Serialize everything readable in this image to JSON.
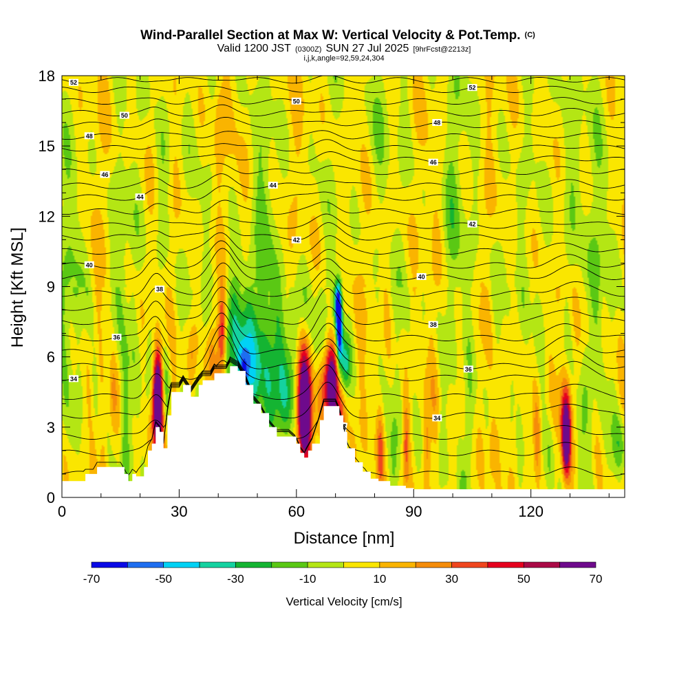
{
  "header": {
    "title_main": "Wind-Parallel Section at Max W: Vertical Velocity & Pot.Temp.",
    "title_mark": "(C)",
    "valid_prefix": "Valid 1200 JST",
    "valid_z": "(0300Z)",
    "valid_date": "SUN 27 Jul 2025",
    "valid_fcst": "[9hrFcst@2213z]",
    "indices": "i,j,k,angle=92,59,24,304"
  },
  "chart_data": {
    "type": "heatmap",
    "xlabel": "Distance [nm]",
    "ylabel": "Height [Kft MSL]",
    "xlim": [
      0,
      144
    ],
    "ylim": [
      0,
      18
    ],
    "xticks": [
      0,
      30,
      60,
      90,
      120
    ],
    "xtick_labels": [
      "0",
      "30",
      "60",
      "90",
      "120"
    ],
    "yticks": [
      0,
      3,
      6,
      9,
      12,
      15,
      18
    ],
    "ytick_labels": [
      "0",
      "3",
      "6",
      "9",
      "12",
      "15",
      "18"
    ],
    "colorbar": {
      "label": "Vertical Velocity [cm/s]",
      "levels": [
        -70,
        -60,
        -50,
        -40,
        -30,
        -20,
        -10,
        0,
        10,
        20,
        30,
        40,
        50,
        60,
        70
      ],
      "tick_values": [
        -70,
        -50,
        -30,
        -10,
        10,
        30,
        50,
        70
      ],
      "tick_labels": [
        "-70",
        "-50",
        "-30",
        "-10",
        "10",
        "30",
        "50",
        "70"
      ],
      "colors": [
        "#0a0ae6",
        "#1e6ef0",
        "#00d2f5",
        "#14d2a0",
        "#14b432",
        "#5ac814",
        "#b4e614",
        "#fae600",
        "#fab400",
        "#f58c0a",
        "#f0461e",
        "#e6001e",
        "#aa0a46",
        "#6e0a8c"
      ]
    },
    "terrain_kft": [
      [
        0,
        0.7
      ],
      [
        5,
        0.7
      ],
      [
        6,
        1.0
      ],
      [
        8,
        1.0
      ],
      [
        9,
        1.3
      ],
      [
        15,
        1.3
      ],
      [
        16,
        1.0
      ],
      [
        17,
        0.7
      ],
      [
        18,
        1.0
      ],
      [
        19,
        0.9
      ],
      [
        21,
        1.3
      ],
      [
        22,
        2.0
      ],
      [
        23,
        2.3
      ],
      [
        24,
        3.0
      ],
      [
        25,
        2.8
      ],
      [
        26,
        2.1
      ],
      [
        27,
        3.5
      ],
      [
        28,
        4.5
      ],
      [
        30,
        4.5
      ],
      [
        31,
        4.8
      ],
      [
        33,
        4.3
      ],
      [
        35,
        4.8
      ],
      [
        36,
        5.0
      ],
      [
        38,
        5.0
      ],
      [
        39,
        5.3
      ],
      [
        42,
        5.3
      ],
      [
        43,
        5.6
      ],
      [
        45,
        5.4
      ],
      [
        47,
        4.8
      ],
      [
        49,
        4.0
      ],
      [
        51,
        3.6
      ],
      [
        53,
        3.0
      ],
      [
        55,
        2.6
      ],
      [
        58,
        2.6
      ],
      [
        60,
        2.3
      ],
      [
        61,
        1.9
      ],
      [
        62,
        1.7
      ],
      [
        63,
        2.0
      ],
      [
        64,
        2.3
      ],
      [
        66,
        3.3
      ],
      [
        67,
        3.9
      ],
      [
        70,
        3.9
      ],
      [
        71,
        3.5
      ],
      [
        72,
        2.8
      ],
      [
        73,
        2.1
      ],
      [
        75,
        1.5
      ],
      [
        77,
        1.1
      ],
      [
        79,
        0.8
      ],
      [
        81,
        0.7
      ],
      [
        84,
        0.5
      ],
      [
        88,
        0.4
      ],
      [
        90,
        0.35
      ],
      [
        144,
        0.35
      ]
    ],
    "w_cells": [
      {
        "x": 24.5,
        "z": 4.8,
        "w": 70,
        "sx": 0.9,
        "sz": 1.2
      },
      {
        "x": 24.5,
        "z": 3.4,
        "w": 55,
        "sx": 1.1,
        "sz": 1.3
      },
      {
        "x": 41,
        "z": 7.1,
        "w": 55,
        "sx": 0.8,
        "sz": 1.3
      },
      {
        "x": 62,
        "z": 4.6,
        "w": 75,
        "sx": 1.4,
        "sz": 1.6
      },
      {
        "x": 62,
        "z": 3.0,
        "w": 60,
        "sx": 1.0,
        "sz": 1.0
      },
      {
        "x": 69,
        "z": 4.8,
        "w": 75,
        "sx": 1.2,
        "sz": 1.2
      },
      {
        "x": 66.5,
        "z": 4.4,
        "w": 30,
        "sx": 1.3,
        "sz": 1.5
      },
      {
        "x": 71.5,
        "z": 3.0,
        "w": 30,
        "sx": 0.8,
        "sz": 1.2
      },
      {
        "x": 71,
        "z": 7.2,
        "w": -75,
        "sx": 0.55,
        "sz": 1.1
      },
      {
        "x": 70.5,
        "z": 8.3,
        "w": -50,
        "sx": 0.6,
        "sz": 0.7
      },
      {
        "x": 72.5,
        "z": 5.7,
        "w": -35,
        "sx": 0.9,
        "sz": 0.8
      },
      {
        "x": 46.5,
        "z": 5.2,
        "w": -42,
        "sx": 1.0,
        "sz": 1.0
      },
      {
        "x": 47,
        "z": 6.3,
        "w": -28,
        "sx": 2.5,
        "sz": 2.0
      },
      {
        "x": 43.5,
        "z": 7.5,
        "w": -26,
        "sx": 2.0,
        "sz": 1.8
      },
      {
        "x": 53,
        "z": 5.5,
        "w": -28,
        "sx": 3.0,
        "sz": 2.2
      },
      {
        "x": 57.5,
        "z": 4.3,
        "w": -24,
        "sx": 1.5,
        "sz": 1.4
      },
      {
        "x": 60,
        "z": 6.8,
        "w": -20,
        "sx": 2.0,
        "sz": 1.8
      },
      {
        "x": 65,
        "z": 6.0,
        "w": -18,
        "sx": 1.5,
        "sz": 1.8
      },
      {
        "x": 26.5,
        "z": 4.6,
        "w": -24,
        "sx": 1.0,
        "sz": 1.6
      },
      {
        "x": 22.5,
        "z": 4.8,
        "w": -18,
        "sx": 1.2,
        "sz": 1.4
      },
      {
        "x": 28.5,
        "z": 3.2,
        "w": 18,
        "sx": 0.8,
        "sz": 1.2
      },
      {
        "x": 33.5,
        "z": 6.2,
        "w": 18,
        "sx": 0.8,
        "sz": 1.0
      },
      {
        "x": 38,
        "z": 6.2,
        "w": 20,
        "sx": 1.0,
        "sz": 1.0
      },
      {
        "x": 16,
        "z": 2.8,
        "w": -18,
        "sx": 0.8,
        "sz": 1.8
      },
      {
        "x": 8.5,
        "z": 4.8,
        "w": -15,
        "sx": 0.7,
        "sz": 1.2
      },
      {
        "x": 13,
        "z": 4.2,
        "w": 14,
        "sx": 0.7,
        "sz": 1.5
      },
      {
        "x": 5.5,
        "z": 2.5,
        "w": 12,
        "sx": 0.7,
        "sz": 1.2
      },
      {
        "x": 10.5,
        "z": 1.5,
        "w": 15,
        "sx": 0.6,
        "sz": 0.8
      },
      {
        "x": 50.5,
        "z": 3.3,
        "w": 18,
        "sx": 0.7,
        "sz": 0.8
      },
      {
        "x": 129,
        "z": 2.3,
        "w": 60,
        "sx": 0.7,
        "sz": 1.0
      },
      {
        "x": 129,
        "z": 3.5,
        "w": 38,
        "sx": 1.0,
        "sz": 1.3
      },
      {
        "x": 121.5,
        "z": 2.4,
        "w": 28,
        "sx": 0.7,
        "sz": 1.5
      },
      {
        "x": 88,
        "z": 2.2,
        "w": 26,
        "sx": 0.6,
        "sz": 1.3
      },
      {
        "x": 81.5,
        "z": 2.0,
        "w": 22,
        "sx": 0.6,
        "sz": 1.2
      },
      {
        "x": 93.5,
        "z": 2.2,
        "w": 18,
        "sx": 0.6,
        "sz": 1.2
      },
      {
        "x": 110,
        "z": 2.0,
        "w": 15,
        "sx": 0.6,
        "sz": 1.0
      },
      {
        "x": 116,
        "z": 2.8,
        "w": 14,
        "sx": 0.6,
        "sz": 1.4
      },
      {
        "x": 143,
        "z": 2.2,
        "w": -22,
        "sx": 1.5,
        "sz": 1.0
      },
      {
        "x": 133,
        "z": 3.2,
        "w": -15,
        "sx": 1.0,
        "sz": 1.5
      },
      {
        "x": 125,
        "z": 2.0,
        "w": -14,
        "sx": 0.8,
        "sz": 1.2
      },
      {
        "x": 113,
        "z": 1.5,
        "w": -13,
        "sx": 0.7,
        "sz": 1.0
      },
      {
        "x": 104,
        "z": 2.5,
        "w": -13,
        "sx": 0.7,
        "sz": 1.3
      },
      {
        "x": 97,
        "z": 2.2,
        "w": -13,
        "sx": 0.6,
        "sz": 1.2
      },
      {
        "x": 85,
        "z": 1.8,
        "w": -12,
        "sx": 0.6,
        "sz": 1.0
      },
      {
        "x": 40,
        "z": 15.3,
        "w": 14,
        "sx": 0.8,
        "sz": 1.5
      },
      {
        "x": 52,
        "z": 12.0,
        "w": -12,
        "sx": 2.0,
        "sz": 3.0
      },
      {
        "x": 15,
        "z": 10.0,
        "w": -13,
        "sx": 1.5,
        "sz": 3.0
      },
      {
        "x": 26,
        "z": 13.5,
        "w": -12,
        "sx": 1.5,
        "sz": 3.0
      },
      {
        "x": 100,
        "z": 12.5,
        "w": -12,
        "sx": 2.0,
        "sz": 4.0
      },
      {
        "x": 130,
        "z": 14.0,
        "w": -12,
        "sx": 2.5,
        "sz": 4.0
      },
      {
        "x": 80,
        "z": 16.0,
        "w": -12,
        "sx": 2.0,
        "sz": 2.5
      },
      {
        "x": 3,
        "z": 9.0,
        "w": -13,
        "sx": 2.0,
        "sz": 3.5
      },
      {
        "x": 113,
        "z": 9.0,
        "w": -11,
        "sx": 1.5,
        "sz": 3.0
      },
      {
        "x": 138,
        "z": 10.0,
        "w": -11,
        "sx": 2.0,
        "sz": 3.0
      }
    ],
    "theta_contours": [
      {
        "base": 1.0,
        "amp": 0.3,
        "label": "34",
        "label_x": 72,
        "label_rot": -80
      },
      {
        "base": 1.9,
        "amp": 0.6,
        "label": "",
        "label_x": 0,
        "label_rot": 0
      },
      {
        "base": 2.6,
        "amp": 0.8,
        "label": "",
        "label_x": 0,
        "label_rot": 0
      },
      {
        "base": 3.5,
        "amp": 1.0,
        "label": "34",
        "label_x": 96,
        "label_rot": 0
      },
      {
        "base": 4.3,
        "amp": 1.0,
        "label": "",
        "label_x": 0,
        "label_rot": 0
      },
      {
        "base": 5.1,
        "amp": 1.1,
        "label": "34",
        "label_x": 3,
        "label_rot": 0
      },
      {
        "base": 5.6,
        "amp": 1.0,
        "label": "36",
        "label_x": 104,
        "label_rot": 0
      },
      {
        "base": 6.2,
        "amp": 1.0,
        "label": "",
        "label_x": 0,
        "label_rot": 0
      },
      {
        "base": 6.8,
        "amp": 1.0,
        "label": "36",
        "label_x": 14,
        "label_rot": 0
      },
      {
        "base": 7.5,
        "amp": 1.0,
        "label": "38",
        "label_x": 95,
        "label_rot": 0
      },
      {
        "base": 8.1,
        "amp": 0.9,
        "label": "38",
        "label_x": 25,
        "label_rot": 0
      },
      {
        "base": 8.7,
        "amp": 0.8,
        "label": "",
        "label_x": 0,
        "label_rot": 0
      },
      {
        "base": 9.4,
        "amp": 0.7,
        "label": "40",
        "label_x": 92,
        "label_rot": 0
      },
      {
        "base": 9.9,
        "amp": 0.6,
        "label": "40",
        "label_x": 7,
        "label_rot": 0
      },
      {
        "base": 10.5,
        "amp": 0.5,
        "label": "",
        "label_x": 0,
        "label_rot": 0
      },
      {
        "base": 11.1,
        "amp": 0.4,
        "label": "42",
        "label_x": 60,
        "label_rot": 0
      },
      {
        "base": 11.6,
        "amp": 0.3,
        "label": "42",
        "label_x": 105,
        "label_rot": 0
      },
      {
        "base": 12.2,
        "amp": 0.3,
        "label": "",
        "label_x": 0,
        "label_rot": 0
      },
      {
        "base": 12.8,
        "amp": 0.25,
        "label": "44",
        "label_x": 20,
        "label_rot": 0
      },
      {
        "base": 13.3,
        "amp": 0.25,
        "label": "44",
        "label_x": 54,
        "label_rot": 0
      },
      {
        "base": 13.9,
        "amp": 0.2,
        "label": "46",
        "label_x": 11,
        "label_rot": 0
      },
      {
        "base": 14.4,
        "amp": 0.2,
        "label": "46",
        "label_x": 95,
        "label_rot": 0
      },
      {
        "base": 14.9,
        "amp": 0.2,
        "label": "",
        "label_x": 0,
        "label_rot": 0
      },
      {
        "base": 15.4,
        "amp": 0.15,
        "label": "48",
        "label_x": 7,
        "label_rot": 0
      },
      {
        "base": 15.9,
        "amp": 0.15,
        "label": "48",
        "label_x": 96,
        "label_rot": 0
      },
      {
        "base": 16.4,
        "amp": 0.15,
        "label": "50",
        "label_x": 16,
        "label_rot": 0
      },
      {
        "base": 16.9,
        "amp": 0.1,
        "label": "50",
        "label_x": 60,
        "label_rot": 0
      },
      {
        "base": 17.4,
        "amp": 0.1,
        "label": "52",
        "label_x": 105,
        "label_rot": 0
      },
      {
        "base": 17.8,
        "amp": 0.08,
        "label": "52",
        "label_x": 3,
        "label_rot": 0
      }
    ]
  }
}
